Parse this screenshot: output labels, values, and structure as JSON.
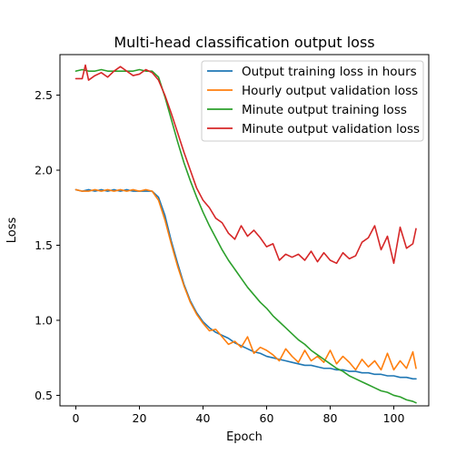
{
  "chart_data": {
    "type": "line",
    "title": "Multi-head classification output loss",
    "xlabel": "Epoch",
    "ylabel": "Loss",
    "xlim": [
      -5,
      111
    ],
    "ylim": [
      0.43,
      2.77
    ],
    "xticks": [
      0,
      20,
      40,
      60,
      80,
      100
    ],
    "yticks": [
      0.5,
      1.0,
      1.5,
      2.0,
      2.5
    ],
    "ytick_labels": [
      "0.5",
      "1.0",
      "1.5",
      "2.0",
      "2.5"
    ],
    "legend_position": "top-right",
    "grid": false,
    "series": [
      {
        "name": "Output training loss in hours",
        "color": "#1f77b4",
        "x": [
          0,
          2,
          4,
          6,
          8,
          10,
          12,
          14,
          16,
          18,
          20,
          22,
          24,
          26,
          28,
          30,
          32,
          34,
          36,
          38,
          40,
          42,
          44,
          46,
          48,
          50,
          52,
          54,
          56,
          58,
          60,
          62,
          64,
          66,
          68,
          70,
          72,
          74,
          76,
          78,
          80,
          82,
          84,
          86,
          88,
          90,
          92,
          94,
          96,
          98,
          100,
          102,
          104,
          106,
          107
        ],
        "values": [
          1.87,
          1.86,
          1.87,
          1.86,
          1.87,
          1.86,
          1.87,
          1.86,
          1.87,
          1.86,
          1.86,
          1.86,
          1.86,
          1.82,
          1.7,
          1.53,
          1.38,
          1.24,
          1.13,
          1.05,
          0.99,
          0.95,
          0.92,
          0.9,
          0.88,
          0.85,
          0.83,
          0.81,
          0.79,
          0.78,
          0.76,
          0.75,
          0.74,
          0.73,
          0.72,
          0.71,
          0.7,
          0.7,
          0.69,
          0.68,
          0.68,
          0.67,
          0.67,
          0.66,
          0.66,
          0.65,
          0.65,
          0.64,
          0.64,
          0.63,
          0.63,
          0.62,
          0.62,
          0.61,
          0.61
        ]
      },
      {
        "name": "Hourly output validation loss",
        "color": "#ff7f0e",
        "x": [
          0,
          2,
          4,
          6,
          8,
          10,
          12,
          14,
          16,
          18,
          20,
          22,
          24,
          26,
          28,
          30,
          32,
          34,
          36,
          38,
          40,
          42,
          44,
          46,
          48,
          50,
          52,
          54,
          56,
          58,
          60,
          62,
          64,
          66,
          68,
          70,
          72,
          74,
          76,
          78,
          80,
          82,
          84,
          86,
          88,
          90,
          92,
          94,
          96,
          98,
          100,
          102,
          104,
          106,
          107
        ],
        "values": [
          1.87,
          1.86,
          1.86,
          1.87,
          1.86,
          1.87,
          1.86,
          1.87,
          1.86,
          1.87,
          1.86,
          1.87,
          1.86,
          1.8,
          1.67,
          1.51,
          1.36,
          1.23,
          1.12,
          1.04,
          0.98,
          0.93,
          0.94,
          0.89,
          0.84,
          0.86,
          0.82,
          0.89,
          0.78,
          0.82,
          0.8,
          0.77,
          0.73,
          0.81,
          0.76,
          0.72,
          0.8,
          0.73,
          0.76,
          0.72,
          0.8,
          0.71,
          0.76,
          0.72,
          0.67,
          0.74,
          0.69,
          0.73,
          0.67,
          0.78,
          0.67,
          0.73,
          0.68,
          0.79,
          0.68
        ]
      },
      {
        "name": "Minute output training loss",
        "color": "#2ca02c",
        "x": [
          0,
          2,
          4,
          6,
          8,
          10,
          12,
          14,
          16,
          18,
          20,
          22,
          24,
          26,
          28,
          30,
          32,
          34,
          36,
          38,
          40,
          42,
          44,
          46,
          48,
          50,
          52,
          54,
          56,
          58,
          60,
          62,
          64,
          66,
          68,
          70,
          72,
          74,
          76,
          78,
          80,
          82,
          84,
          86,
          88,
          90,
          92,
          94,
          96,
          98,
          100,
          102,
          104,
          106,
          107
        ],
        "values": [
          2.66,
          2.67,
          2.66,
          2.66,
          2.67,
          2.66,
          2.66,
          2.66,
          2.66,
          2.66,
          2.67,
          2.66,
          2.66,
          2.62,
          2.49,
          2.34,
          2.19,
          2.05,
          1.93,
          1.82,
          1.72,
          1.63,
          1.55,
          1.47,
          1.4,
          1.34,
          1.28,
          1.22,
          1.17,
          1.12,
          1.08,
          1.03,
          0.99,
          0.95,
          0.91,
          0.87,
          0.84,
          0.8,
          0.77,
          0.74,
          0.71,
          0.68,
          0.66,
          0.63,
          0.61,
          0.59,
          0.57,
          0.55,
          0.53,
          0.52,
          0.5,
          0.49,
          0.47,
          0.46,
          0.45
        ]
      },
      {
        "name": "Minute output validation loss",
        "color": "#d62728",
        "x": [
          0,
          2,
          3,
          4,
          6,
          8,
          10,
          12,
          14,
          16,
          18,
          20,
          22,
          24,
          26,
          28,
          30,
          32,
          34,
          36,
          38,
          40,
          42,
          44,
          46,
          48,
          50,
          52,
          54,
          56,
          58,
          60,
          62,
          64,
          66,
          68,
          70,
          72,
          74,
          76,
          78,
          80,
          82,
          84,
          86,
          88,
          90,
          92,
          94,
          96,
          98,
          100,
          102,
          104,
          106,
          107
        ],
        "values": [
          2.61,
          2.61,
          2.7,
          2.6,
          2.63,
          2.65,
          2.62,
          2.66,
          2.69,
          2.66,
          2.63,
          2.64,
          2.67,
          2.65,
          2.6,
          2.5,
          2.38,
          2.25,
          2.12,
          2.0,
          1.88,
          1.8,
          1.75,
          1.68,
          1.65,
          1.58,
          1.54,
          1.63,
          1.56,
          1.6,
          1.55,
          1.49,
          1.51,
          1.4,
          1.44,
          1.42,
          1.44,
          1.4,
          1.46,
          1.39,
          1.45,
          1.4,
          1.38,
          1.45,
          1.41,
          1.43,
          1.52,
          1.55,
          1.63,
          1.47,
          1.56,
          1.38,
          1.62,
          1.48,
          1.51,
          1.61
        ]
      }
    ]
  }
}
